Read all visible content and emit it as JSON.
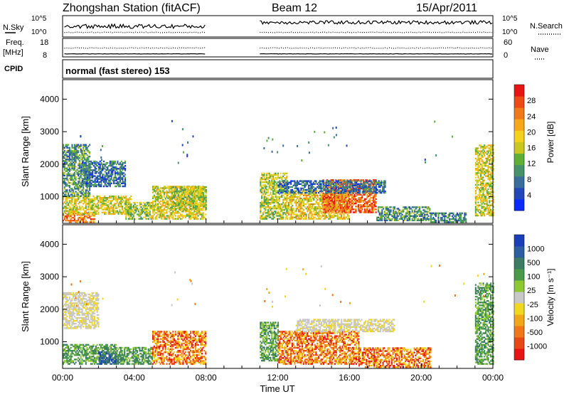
{
  "header": {
    "station": "Zhongshan Station (fitACF)",
    "beam": "Beam 12",
    "date": "15/Apr/2011"
  },
  "top_panels": {
    "nsky_label": "N.Sky",
    "nsky_ticks": [
      "10^5",
      "10^0"
    ],
    "nsearch_label": "N.Search",
    "nsearch_ticks": [
      "10^5",
      "10^0"
    ],
    "freq_label_line1": "Freq.",
    "freq_label_line2": "[MHz]",
    "freq_ticks": [
      "18",
      "8"
    ],
    "nave_label": "Nave",
    "nave_ticks": [
      "60",
      "0"
    ],
    "cpid_label": "CPID",
    "cpid_value": "normal (fast stereo) 153"
  },
  "chart_data": [
    {
      "type": "heatmap",
      "name": "power",
      "ylabel": "Slant Range [km]",
      "yticks": [
        1000,
        2000,
        3000,
        4000
      ],
      "ylim": [
        180,
        4600
      ],
      "xlim_hours": [
        0,
        24
      ],
      "colorbar": {
        "label": "Power [dB]",
        "ticks": [
          "4",
          "8",
          "12",
          "16",
          "20",
          "24",
          "28"
        ],
        "colors": [
          "#0a2bff",
          "#2346b8",
          "#3a6e9a",
          "#46936a",
          "#5faf3a",
          "#c8c81e",
          "#f2d21a",
          "#f5a818",
          "#f07a1a",
          "#ee4a18",
          "#e81414"
        ]
      },
      "regions": [
        {
          "t": [
            0.0,
            1.8
          ],
          "r": [
            200,
            500
          ],
          "v": 0.8
        },
        {
          "t": [
            0.0,
            3.8
          ],
          "r": [
            450,
            1000
          ],
          "v": 0.55
        },
        {
          "t": [
            0.0,
            1.5
          ],
          "r": [
            1000,
            2600
          ],
          "v": 0.3
        },
        {
          "t": [
            1.0,
            3.5
          ],
          "r": [
            1300,
            2100
          ],
          "v": 0.2
        },
        {
          "t": [
            3.5,
            5.0
          ],
          "r": [
            300,
            800
          ],
          "v": 0.45
        },
        {
          "t": [
            5.0,
            8.0
          ],
          "r": [
            300,
            1300
          ],
          "v": 0.55
        },
        {
          "t": [
            6.0,
            8.0
          ],
          "r": [
            600,
            1300
          ],
          "v": 0.5
        },
        {
          "t": [
            11.0,
            12.5
          ],
          "r": [
            300,
            1700
          ],
          "v": 0.5
        },
        {
          "t": [
            12.5,
            16.0
          ],
          "r": [
            300,
            1200
          ],
          "v": 0.6
        },
        {
          "t": [
            14.5,
            17.5
          ],
          "r": [
            500,
            1500
          ],
          "v": 0.85
        },
        {
          "t": [
            12.0,
            18.0
          ],
          "r": [
            1100,
            1500
          ],
          "v": 0.2
        },
        {
          "t": [
            17.5,
            20.5
          ],
          "r": [
            250,
            700
          ],
          "v": 0.3
        },
        {
          "t": [
            20.5,
            22.5
          ],
          "r": [
            200,
            500
          ],
          "v": 0.25
        },
        {
          "t": [
            23.0,
            24.0
          ],
          "r": [
            400,
            2600
          ],
          "v": 0.55
        }
      ]
    },
    {
      "type": "heatmap",
      "name": "velocity",
      "ylabel": "Slant Range [km]",
      "yticks": [
        1000,
        2000,
        3000,
        4000
      ],
      "ylim": [
        180,
        4600
      ],
      "xlim_hours": [
        0,
        24
      ],
      "colorbar": {
        "label": "Velocity [m s⁻¹]",
        "ticks": [
          "1000",
          "500",
          "100",
          "25",
          "-25",
          "-100",
          "-500",
          "-1000"
        ],
        "colors": [
          "#1a3fb8",
          "#2c5fa0",
          "#3c7c64",
          "#4a9a4a",
          "#8ec832",
          "#c8c8c8",
          "#f0d820",
          "#f0a818",
          "#f07818",
          "#e84818",
          "#e81414"
        ]
      },
      "regions": [
        {
          "t": [
            0.0,
            3.0
          ],
          "r": [
            300,
            900
          ],
          "v": "green"
        },
        {
          "t": [
            0.0,
            2.0
          ],
          "r": [
            1400,
            2500
          ],
          "v": "grey"
        },
        {
          "t": [
            2.0,
            3.0
          ],
          "r": [
            300,
            700
          ],
          "v": "blue"
        },
        {
          "t": [
            3.0,
            5.0
          ],
          "r": [
            300,
            800
          ],
          "v": "green"
        },
        {
          "t": [
            5.0,
            8.0
          ],
          "r": [
            300,
            1300
          ],
          "v": "orange"
        },
        {
          "t": [
            11.0,
            12.0
          ],
          "r": [
            400,
            1600
          ],
          "v": "green"
        },
        {
          "t": [
            12.0,
            16.5
          ],
          "r": [
            300,
            1300
          ],
          "v": "orange"
        },
        {
          "t": [
            13.0,
            18.5
          ],
          "r": [
            1300,
            1700
          ],
          "v": "grey"
        },
        {
          "t": [
            16.5,
            20.5
          ],
          "r": [
            200,
            800
          ],
          "v": "orange"
        },
        {
          "t": [
            23.0,
            24.0
          ],
          "r": [
            300,
            2800
          ],
          "v": "green"
        }
      ]
    }
  ],
  "x_axis": {
    "ticks": [
      "00:00",
      "04:00",
      "08:00",
      "12:00",
      "16:00",
      "20:00",
      "00:00"
    ],
    "label": "Time UT"
  }
}
